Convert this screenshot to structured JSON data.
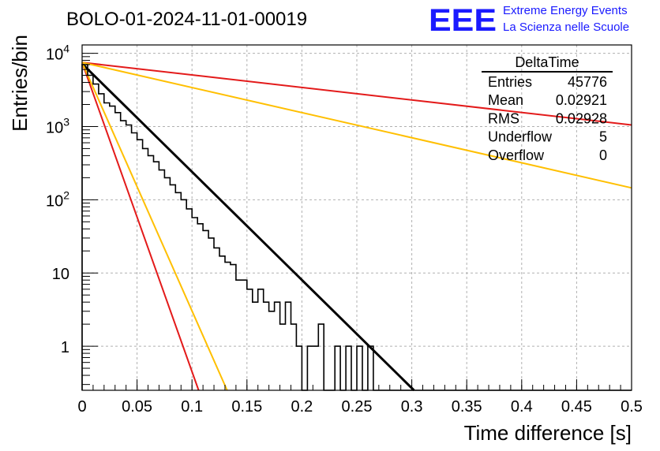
{
  "header": {
    "title": "BOLO-01-2024-11-01-00019",
    "logo_text": "EEE",
    "logo_line1": "Extreme Energy Events",
    "logo_line2": "La Scienza nelle Scuole",
    "logo_color": "#1a1aff"
  },
  "stats_box": {
    "title": "DeltaTime",
    "rows": [
      {
        "label": "Entries",
        "value": "45776"
      },
      {
        "label": "Mean",
        "value": "0.02921"
      },
      {
        "label": "RMS",
        "value": "0.02928"
      },
      {
        "label": "Underflow",
        "value": "5"
      },
      {
        "label": "Overflow",
        "value": "0"
      }
    ]
  },
  "chart_data": {
    "type": "line",
    "xlabel": "Time difference [s]",
    "ylabel": "Entries/bin",
    "xlim": [
      0,
      0.5
    ],
    "ylim": [
      0.25,
      13000
    ],
    "yscale": "log",
    "grid": true,
    "x_ticks": [
      "0",
      "0.05",
      "0.1",
      "0.15",
      "0.2",
      "0.25",
      "0.3",
      "0.35",
      "0.4",
      "0.45",
      "0.5"
    ],
    "y_ticks": [
      {
        "value": 1,
        "base": "1",
        "exp": ""
      },
      {
        "value": 10,
        "base": "10",
        "exp": ""
      },
      {
        "value": 100,
        "base": "10",
        "exp": "2"
      },
      {
        "value": 1000,
        "base": "10",
        "exp": "3"
      },
      {
        "value": 10000,
        "base": "10",
        "exp": "4"
      }
    ],
    "histogram": {
      "bin_width": 0.005,
      "color": "#000000",
      "counts": [
        7000,
        5000,
        3800,
        2800,
        2100,
        1900,
        1550,
        1200,
        1050,
        820,
        660,
        500,
        400,
        330,
        255,
        200,
        160,
        125,
        100,
        75,
        57,
        47,
        38,
        30,
        22,
        17,
        14,
        13,
        8,
        8,
        6,
        4,
        6,
        4,
        3,
        4,
        2,
        4,
        2,
        1,
        0,
        1,
        1,
        2,
        0,
        0,
        1,
        0,
        1,
        0,
        1,
        0,
        1,
        0,
        0,
        0,
        0,
        0,
        0,
        0,
        0,
        0,
        0,
        0,
        0,
        0,
        0,
        0,
        0,
        0,
        0,
        0,
        0,
        0,
        0,
        0,
        0,
        0,
        0,
        0,
        0,
        0,
        0,
        0,
        0,
        0,
        0,
        0,
        0,
        0,
        0,
        0,
        0,
        0,
        0,
        0,
        0,
        0,
        0,
        0
      ]
    },
    "series": [
      {
        "color": "#000000",
        "points": [
          [
            0,
            7200
          ],
          [
            0.302,
            0.25
          ]
        ]
      },
      {
        "color": "#e31a1a",
        "points": [
          [
            0,
            7500
          ],
          [
            0.5,
            1050
          ]
        ]
      },
      {
        "color": "#ffbf00",
        "points": [
          [
            0,
            7500
          ],
          [
            0.5,
            145
          ]
        ]
      },
      {
        "color": "#e31a1a",
        "points": [
          [
            0,
            7500
          ],
          [
            0.106,
            0.25
          ]
        ]
      },
      {
        "color": "#ffbf00",
        "points": [
          [
            0,
            7500
          ],
          [
            0.132,
            0.25
          ]
        ]
      }
    ]
  }
}
